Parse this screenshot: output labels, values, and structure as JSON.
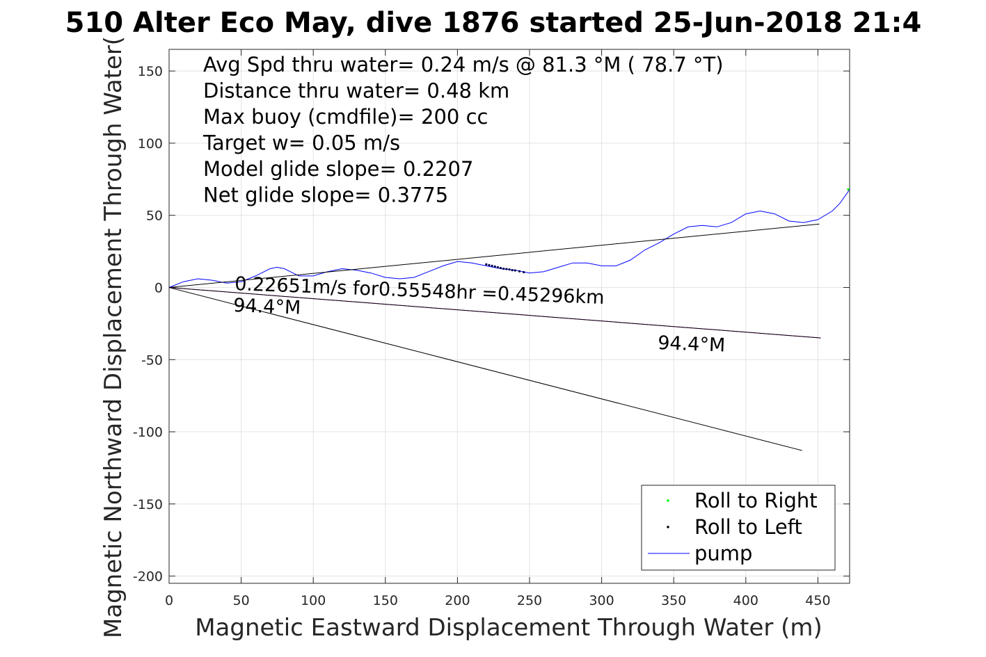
{
  "chart_data": {
    "type": "line",
    "title": "510 Alter Eco May, dive 1876 started 25-Jun-2018 21:4",
    "xlabel": "Magnetic Eastward Displacement Through Water (m)",
    "ylabel": "Magnetic Northward Displacement Through Water(",
    "xlim": [
      0,
      472
    ],
    "ylim": [
      -205,
      165
    ],
    "xticks": [
      0,
      50,
      100,
      150,
      200,
      250,
      300,
      350,
      400,
      450
    ],
    "yticks": [
      -200,
      -150,
      -100,
      -50,
      0,
      50,
      100,
      150
    ],
    "grid": true,
    "info_lines": [
      "Avg Spd thru water=  0.24 m/s @  81.3 °M ( 78.7 °T)",
      "Distance thru water=  0.48 km",
      "Max buoy (cmdfile)= 200 cc",
      "Target w= 0.05 m/s",
      "Model glide slope= 0.2207",
      "Net glide slope= 0.3775"
    ],
    "annotations": {
      "speed_text": "0.22651m/s for0.55548hr =0.45296km",
      "heading_start": "94.4°M",
      "heading_end": "94.4°M"
    },
    "series": [
      {
        "name": "pump",
        "style": "line",
        "color": "#0000ff",
        "x": [
          0,
          10,
          20,
          30,
          40,
          50,
          60,
          70,
          75,
          80,
          90,
          100,
          110,
          120,
          130,
          140,
          150,
          160,
          170,
          180,
          190,
          200,
          210,
          220,
          230,
          240,
          250,
          260,
          270,
          280,
          290,
          300,
          310,
          320,
          330,
          340,
          350,
          360,
          370,
          380,
          390,
          400,
          410,
          420,
          430,
          440,
          450,
          460,
          465,
          470,
          472
        ],
        "y": [
          0,
          4,
          6,
          5,
          3,
          4,
          8,
          13,
          14,
          13,
          8,
          8,
          11,
          13,
          12,
          10,
          7,
          6,
          7,
          11,
          15,
          18,
          17,
          15,
          13,
          12,
          10,
          11,
          14,
          17,
          17,
          15,
          15,
          19,
          26,
          31,
          37,
          42,
          43,
          42,
          45,
          51,
          53,
          51,
          46,
          45,
          47,
          53,
          58,
          65,
          68
        ]
      },
      {
        "name": "Roll to Left",
        "style": "dots",
        "color": "#00004a",
        "x": [
          220,
          222,
          224,
          226,
          228,
          230,
          232,
          234,
          236,
          238,
          240,
          243,
          246
        ],
        "y": [
          16,
          15.5,
          15,
          14.5,
          14,
          13.5,
          13,
          12.8,
          12.5,
          12,
          11.8,
          11.2,
          10.6
        ]
      },
      {
        "name": "Roll to Right",
        "style": "dots",
        "color": "#00ff00",
        "x": [
          471
        ],
        "y": [
          68
        ]
      },
      {
        "name": "",
        "style": "line",
        "color": "#000000",
        "x": [
          0,
          451
        ],
        "y": [
          0,
          44
        ]
      },
      {
        "name": "",
        "style": "line",
        "color": "#000000",
        "x": [
          0,
          439
        ],
        "y": [
          0,
          -113
        ]
      },
      {
        "name": "",
        "style": "line",
        "color": "#cc00cc",
        "x": [
          0,
          452
        ],
        "y": [
          0,
          -35
        ]
      },
      {
        "name": "",
        "style": "line",
        "color": "#000000",
        "x": [
          0,
          452
        ],
        "y": [
          0,
          -35
        ]
      }
    ],
    "legend": {
      "position": "bottom-right",
      "entries": [
        {
          "label": "Roll to Right",
          "color": "#00ff00",
          "marker": "dot"
        },
        {
          "label": "Roll to Left",
          "color": "#000000",
          "marker": "dot"
        },
        {
          "label": "pump",
          "color": "#0000ff",
          "marker": "line"
        }
      ]
    }
  }
}
